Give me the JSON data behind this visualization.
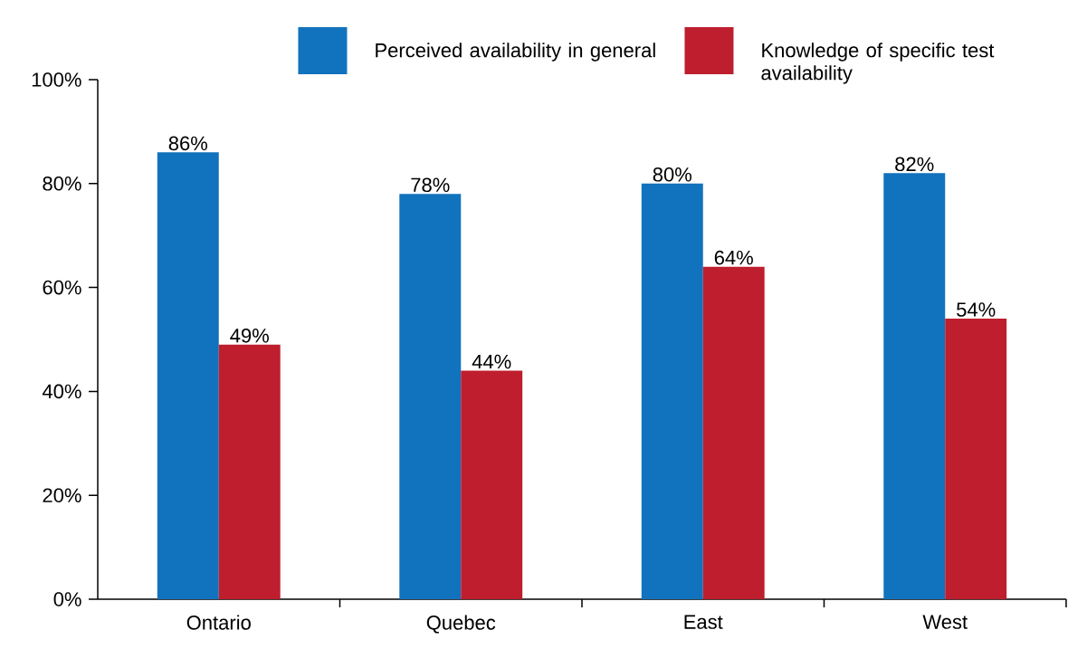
{
  "chart_data": {
    "type": "bar",
    "categories": [
      "Ontario",
      "Quebec",
      "East",
      "West"
    ],
    "series": [
      {
        "name": "Perceived availability in general",
        "color": "#1172bd",
        "values": [
          86,
          78,
          80,
          82
        ],
        "value_labels": [
          "86%",
          "78%",
          "80%",
          "82%"
        ]
      },
      {
        "name": "Knowledge of specific test availability",
        "color": "#be1e2d",
        "values": [
          49,
          44,
          64,
          54
        ],
        "value_labels": [
          "49%",
          "44%",
          "64%",
          "54%"
        ]
      }
    ],
    "ylim": [
      0,
      100
    ],
    "yticks": [
      {
        "value": 0,
        "label": "0%"
      },
      {
        "value": 20,
        "label": "20%"
      },
      {
        "value": 40,
        "label": "40%"
      },
      {
        "value": 60,
        "label": "60%"
      },
      {
        "value": 80,
        "label": "80%"
      },
      {
        "value": 100,
        "label": "100%"
      }
    ],
    "legend": "top",
    "grid": false
  }
}
